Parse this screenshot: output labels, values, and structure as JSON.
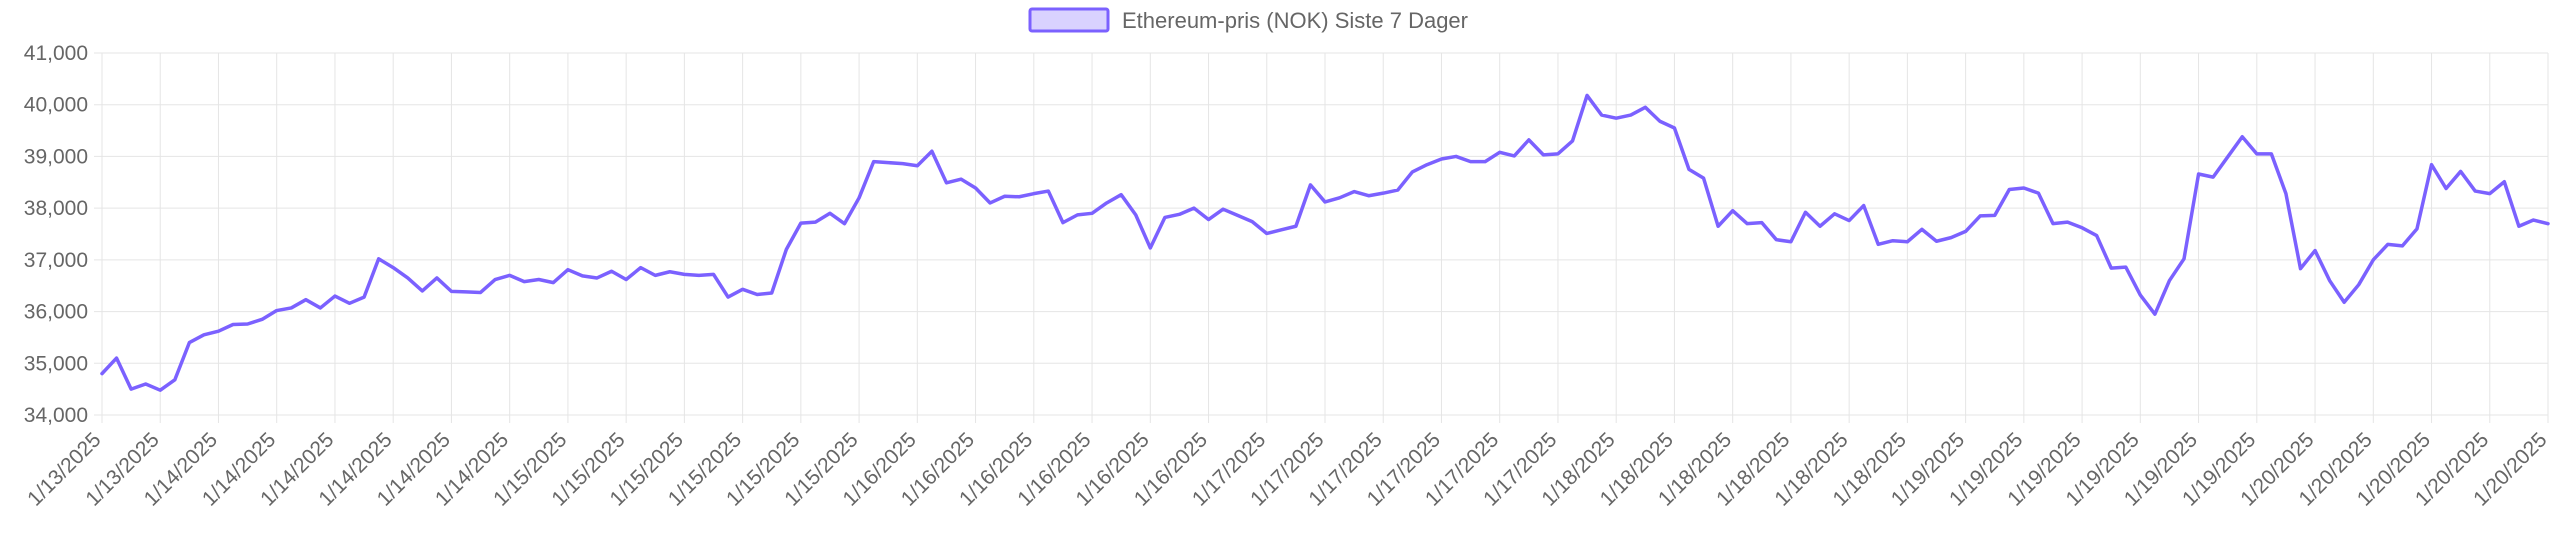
{
  "chart_data": {
    "type": "line",
    "series": [
      {
        "name": "Ethereum-pris (NOK) Siste 7 Dager",
        "color": "#7b61ff",
        "fill": "#d9d2ff",
        "values": [
          34800,
          35100,
          34500,
          34600,
          34480,
          34680,
          35400,
          35550,
          35620,
          35750,
          35760,
          35850,
          36020,
          36070,
          36230,
          36070,
          36300,
          36160,
          36280,
          37020,
          36850,
          36650,
          36400,
          36650,
          36390,
          36380,
          36370,
          36620,
          36700,
          36580,
          36620,
          36560,
          36810,
          36690,
          36650,
          36780,
          36620,
          36850,
          36700,
          36770,
          36720,
          36700,
          36720,
          36280,
          36430,
          36330,
          36360,
          37200,
          37710,
          37730,
          37900,
          37700,
          38200,
          38900,
          38880,
          38860,
          38820,
          39100,
          38490,
          38560,
          38390,
          38100,
          38230,
          38220,
          38280,
          38330,
          37720,
          37870,
          37900,
          38100,
          38260,
          37870,
          37230,
          37820,
          37880,
          38000,
          37780,
          37980,
          37860,
          37740,
          37510,
          37580,
          37650,
          38450,
          38120,
          38200,
          38320,
          38240,
          38290,
          38350,
          38700,
          38840,
          38950,
          39000,
          38900,
          38900,
          39080,
          39010,
          39320,
          39030,
          39050,
          39300,
          40180,
          39800,
          39740,
          39800,
          39950,
          39680,
          39550,
          38750,
          38580,
          37650,
          37950,
          37700,
          37720,
          37390,
          37350,
          37920,
          37650,
          37890,
          37760,
          38050,
          37300,
          37370,
          37350,
          37590,
          37360,
          37430,
          37550,
          37850,
          37860,
          38360,
          38390,
          38290,
          37700,
          37730,
          37620,
          37470,
          36840,
          36860,
          36320,
          35950,
          36600,
          37020,
          38660,
          38600,
          38990,
          39380,
          39050,
          39050,
          38280,
          36830,
          37180,
          36600,
          36180,
          36520,
          37000,
          37300,
          37270,
          37600,
          38840,
          38380,
          38710,
          38330,
          38280,
          38510,
          37650,
          37770,
          37700
        ]
      }
    ],
    "x_tick_labels": [
      "1/13/2025",
      "1/13/2025",
      "1/14/2025",
      "1/14/2025",
      "1/14/2025",
      "1/14/2025",
      "1/14/2025",
      "1/14/2025",
      "1/15/2025",
      "1/15/2025",
      "1/15/2025",
      "1/15/2025",
      "1/15/2025",
      "1/15/2025",
      "1/16/2025",
      "1/16/2025",
      "1/16/2025",
      "1/16/2025",
      "1/16/2025",
      "1/16/2025",
      "1/17/2025",
      "1/17/2025",
      "1/17/2025",
      "1/17/2025",
      "1/17/2025",
      "1/17/2025",
      "1/18/2025",
      "1/18/2025",
      "1/18/2025",
      "1/18/2025",
      "1/18/2025",
      "1/18/2025",
      "1/19/2025",
      "1/19/2025",
      "1/19/2025",
      "1/19/2025",
      "1/19/2025",
      "1/19/2025",
      "1/20/2025",
      "1/20/2025",
      "1/20/2025",
      "1/20/2025",
      "1/20/2025"
    ],
    "y_tick_labels": [
      "41,000",
      "40,000",
      "39,000",
      "38,000",
      "37,000",
      "36,000",
      "35,000",
      "34,000"
    ],
    "y_tick_values": [
      41000,
      40000,
      39000,
      38000,
      37000,
      36000,
      35000,
      34000
    ],
    "ylim": [
      34000,
      41000
    ],
    "grid": true,
    "legend_position": "top-center",
    "title": "",
    "xlabel": "",
    "ylabel": ""
  }
}
